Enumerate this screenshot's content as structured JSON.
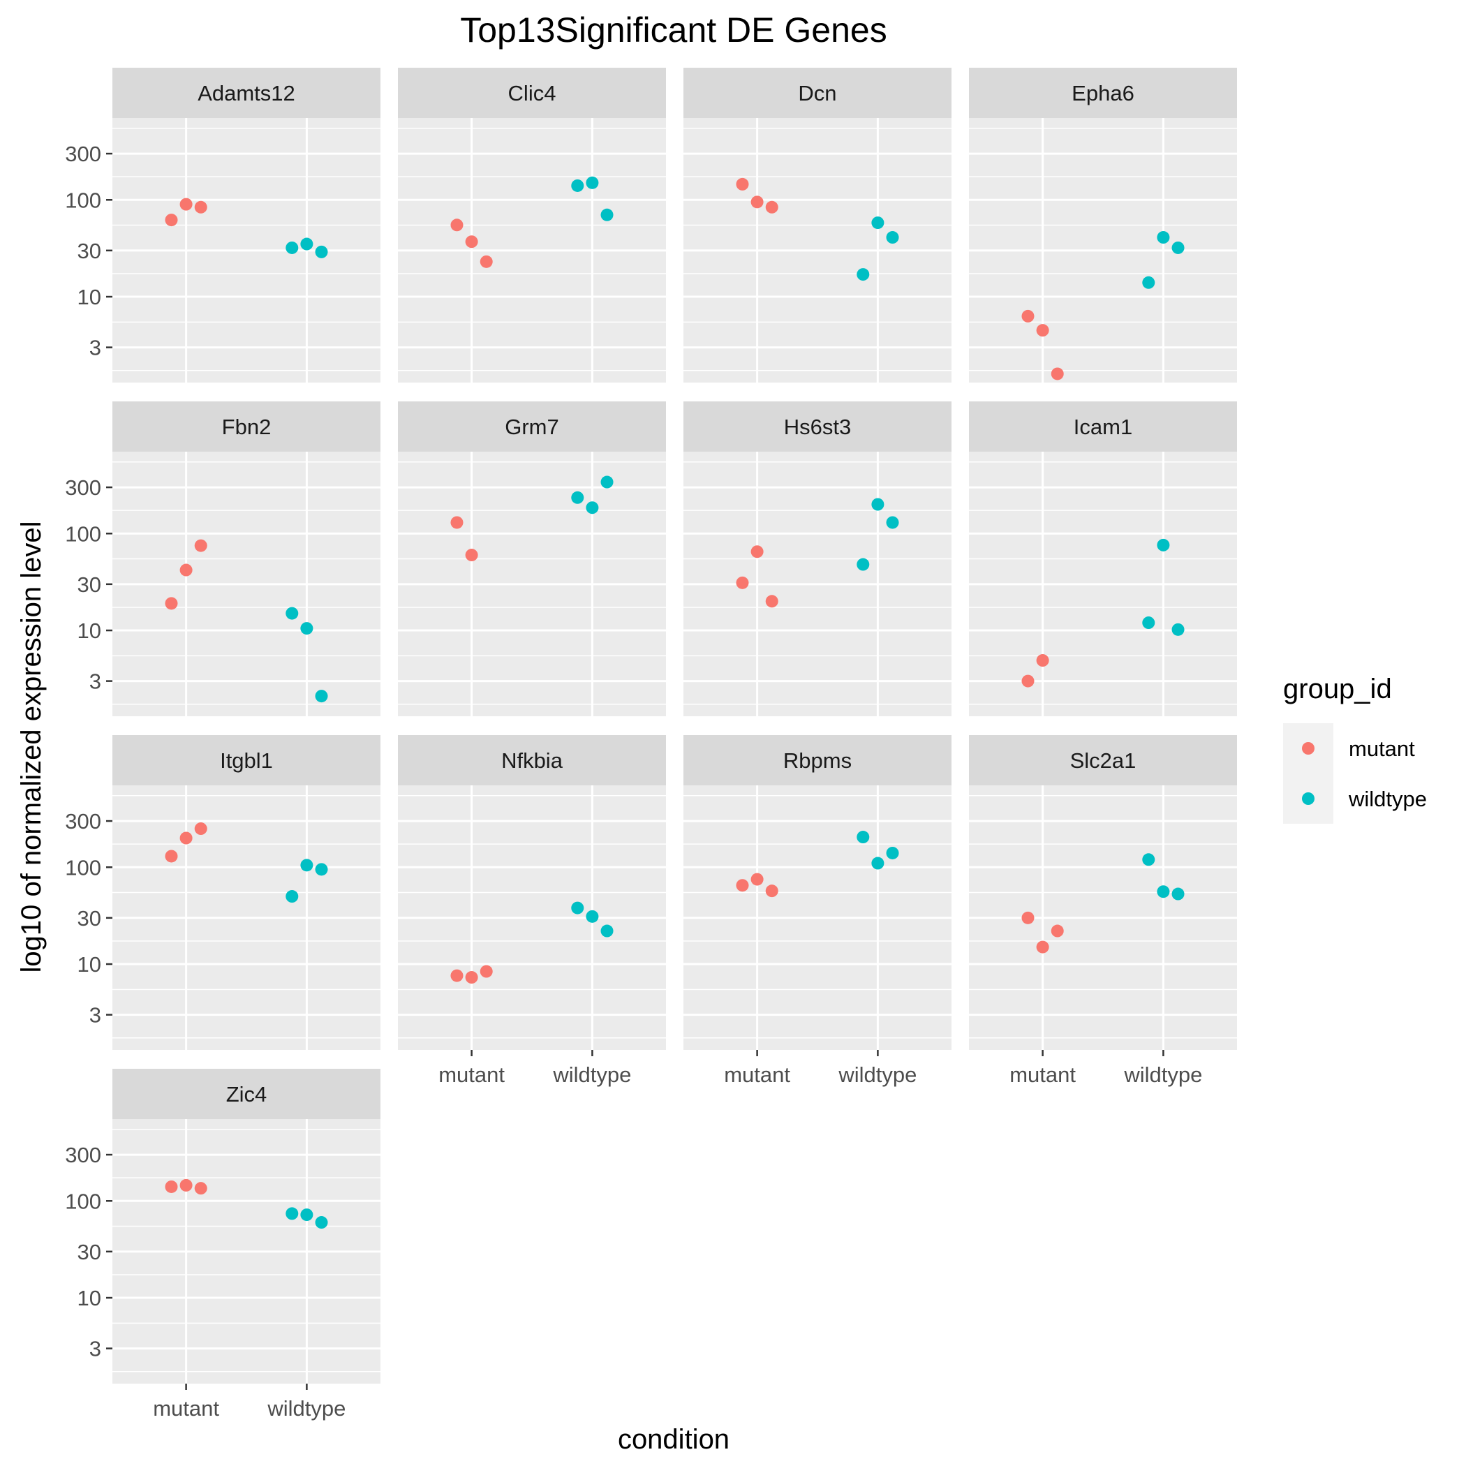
{
  "chart_data": {
    "type": "scatter",
    "title": "Top13Significant DE Genes",
    "xlabel": "condition",
    "ylabel": "log10 of normalized expression level",
    "y_scale": "log10",
    "ylim": [
      1.3,
      700
    ],
    "y_ticks": [
      3,
      10,
      30,
      100,
      300
    ],
    "y_tick_labels": [
      "3",
      "10",
      "30",
      "100",
      "300"
    ],
    "categories": [
      "mutant",
      "wildtype"
    ],
    "legend": {
      "title": "group_id",
      "placement": "right",
      "entries": [
        {
          "name": "mutant",
          "color": "#F8766D"
        },
        {
          "name": "wildtype",
          "color": "#00BFC4"
        }
      ]
    },
    "grid": true,
    "facets": [
      {
        "gene": "Adamts12",
        "mutant": [
          62,
          90,
          84
        ],
        "wildtype": [
          32,
          35,
          29
        ]
      },
      {
        "gene": "Clic4",
        "mutant": [
          55,
          37,
          23
        ],
        "wildtype": [
          140,
          150,
          70
        ]
      },
      {
        "gene": "Dcn",
        "mutant": [
          145,
          95,
          84
        ],
        "wildtype": [
          17,
          58,
          41
        ]
      },
      {
        "gene": "Epha6",
        "mutant": [
          6.3,
          4.5,
          1.6
        ],
        "wildtype": [
          14,
          41,
          32
        ]
      },
      {
        "gene": "Fbn2",
        "mutant": [
          19,
          42,
          75
        ],
        "wildtype": [
          15,
          10.5,
          2.1
        ]
      },
      {
        "gene": "Grm7",
        "mutant": [
          130,
          60
        ],
        "wildtype": [
          235,
          185,
          340
        ]
      },
      {
        "gene": "Hs6st3",
        "mutant": [
          31,
          65,
          20
        ],
        "wildtype": [
          48,
          200,
          130
        ]
      },
      {
        "gene": "Icam1",
        "mutant": [
          3.0,
          4.9
        ],
        "wildtype": [
          12,
          76,
          10.2
        ]
      },
      {
        "gene": "Itgbl1",
        "mutant": [
          130,
          200,
          250
        ],
        "wildtype": [
          50,
          105,
          95
        ]
      },
      {
        "gene": "Nfkbia",
        "mutant": [
          7.6,
          7.3,
          8.4
        ],
        "wildtype": [
          38,
          31,
          22
        ]
      },
      {
        "gene": "Rbpms",
        "mutant": [
          65,
          75,
          57
        ],
        "wildtype": [
          205,
          110,
          140
        ]
      },
      {
        "gene": "Slc2a1",
        "mutant": [
          30,
          15,
          22
        ],
        "wildtype": [
          120,
          56,
          53
        ]
      },
      {
        "gene": "Zic4",
        "mutant": [
          140,
          145,
          135
        ],
        "wildtype": [
          74,
          72,
          60
        ]
      }
    ]
  }
}
